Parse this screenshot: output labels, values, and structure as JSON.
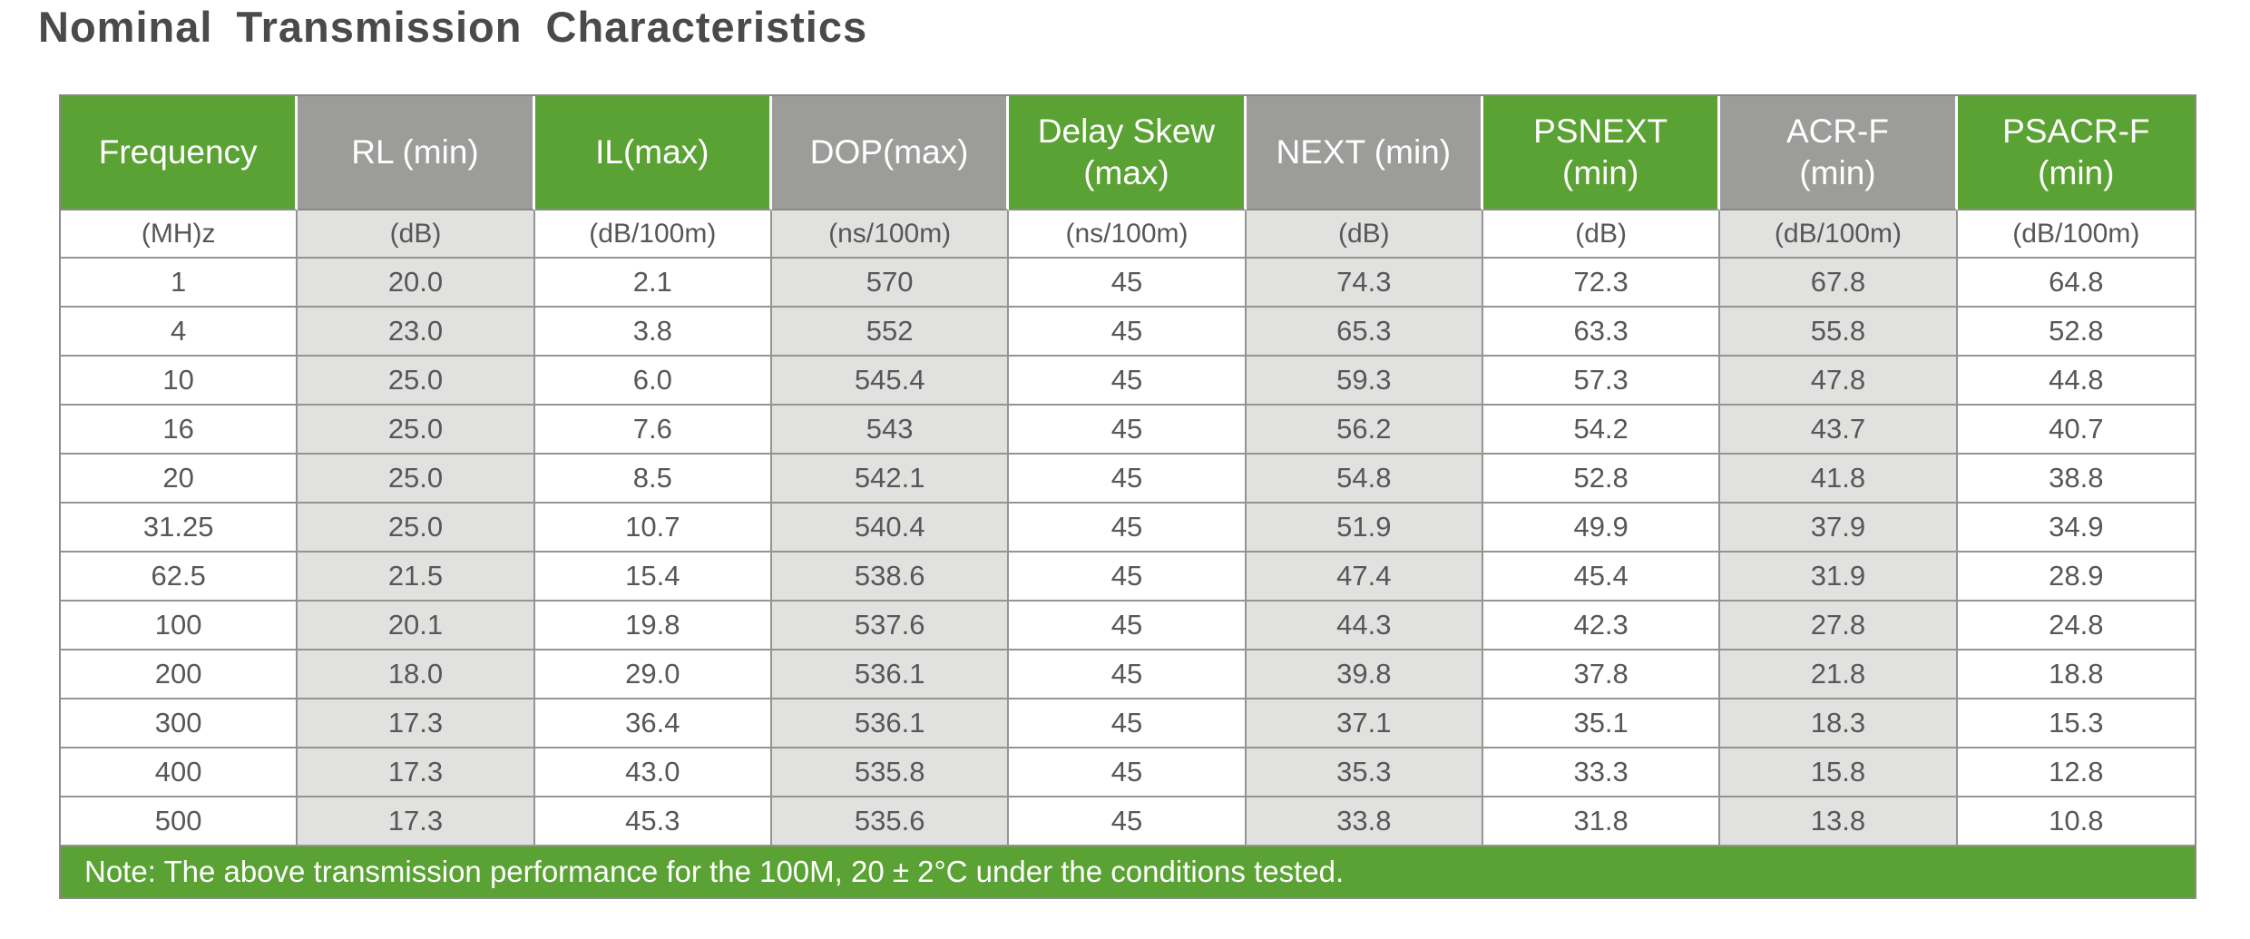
{
  "title": "Nominal Transmission Characteristics",
  "colors": {
    "accent_green": "#5aa233",
    "header_gray": "#9c9c9a",
    "stripe_gray": "#e1e1df",
    "grid_line": "#949492",
    "body_text": "#57575a",
    "header_text": "#ffffff"
  },
  "table": {
    "columns": [
      {
        "label_lines": [
          "Frequency"
        ],
        "label": "Frequency",
        "unit": "(MH)z",
        "header_bg": "green"
      },
      {
        "label_lines": [
          "RL (min)"
        ],
        "label": "RL (min)",
        "unit": "(dB)",
        "header_bg": "gray"
      },
      {
        "label_lines": [
          "IL(max)"
        ],
        "label": "IL(max)",
        "unit": "(dB/100m)",
        "header_bg": "green"
      },
      {
        "label_lines": [
          "DOP(max)"
        ],
        "label": "DOP(max)",
        "unit": "(ns/100m)",
        "header_bg": "gray"
      },
      {
        "label_lines": [
          "Delay Skew",
          "(max)"
        ],
        "label": "Delay Skew (max)",
        "unit": "(ns/100m)",
        "header_bg": "green"
      },
      {
        "label_lines": [
          "NEXT (min)"
        ],
        "label": "NEXT (min)",
        "unit": "(dB)",
        "header_bg": "gray"
      },
      {
        "label_lines": [
          "PSNEXT",
          "(min)"
        ],
        "label": "PSNEXT (min)",
        "unit": "(dB)",
        "header_bg": "green"
      },
      {
        "label_lines": [
          "ACR-F",
          "(min)"
        ],
        "label": "ACR-F (min)",
        "unit": "(dB/100m)",
        "header_bg": "gray"
      },
      {
        "label_lines": [
          "PSACR-F",
          "(min)"
        ],
        "label": "PSACR-F (min)",
        "unit": "(dB/100m)",
        "header_bg": "green"
      }
    ],
    "rows": [
      [
        "1",
        "20.0",
        "2.1",
        "570",
        "45",
        "74.3",
        "72.3",
        "67.8",
        "64.8"
      ],
      [
        "4",
        "23.0",
        "3.8",
        "552",
        "45",
        "65.3",
        "63.3",
        "55.8",
        "52.8"
      ],
      [
        "10",
        "25.0",
        "6.0",
        "545.4",
        "45",
        "59.3",
        "57.3",
        "47.8",
        "44.8"
      ],
      [
        "16",
        "25.0",
        "7.6",
        "543",
        "45",
        "56.2",
        "54.2",
        "43.7",
        "40.7"
      ],
      [
        "20",
        "25.0",
        "8.5",
        "542.1",
        "45",
        "54.8",
        "52.8",
        "41.8",
        "38.8"
      ],
      [
        "31.25",
        "25.0",
        "10.7",
        "540.4",
        "45",
        "51.9",
        "49.9",
        "37.9",
        "34.9"
      ],
      [
        "62.5",
        "21.5",
        "15.4",
        "538.6",
        "45",
        "47.4",
        "45.4",
        "31.9",
        "28.9"
      ],
      [
        "100",
        "20.1",
        "19.8",
        "537.6",
        "45",
        "44.3",
        "42.3",
        "27.8",
        "24.8"
      ],
      [
        "200",
        "18.0",
        "29.0",
        "536.1",
        "45",
        "39.8",
        "37.8",
        "21.8",
        "18.8"
      ],
      [
        "300",
        "17.3",
        "36.4",
        "536.1",
        "45",
        "37.1",
        "35.1",
        "18.3",
        "15.3"
      ],
      [
        "400",
        "17.3",
        "43.0",
        "535.8",
        "45",
        "35.3",
        "33.3",
        "15.8",
        "12.8"
      ],
      [
        "500",
        "17.3",
        "45.3",
        "535.6",
        "45",
        "33.8",
        "31.8",
        "13.8",
        "10.8"
      ]
    ],
    "note": "Note: The above transmission performance for the 100M, 20 ± 2°C under the conditions tested."
  }
}
